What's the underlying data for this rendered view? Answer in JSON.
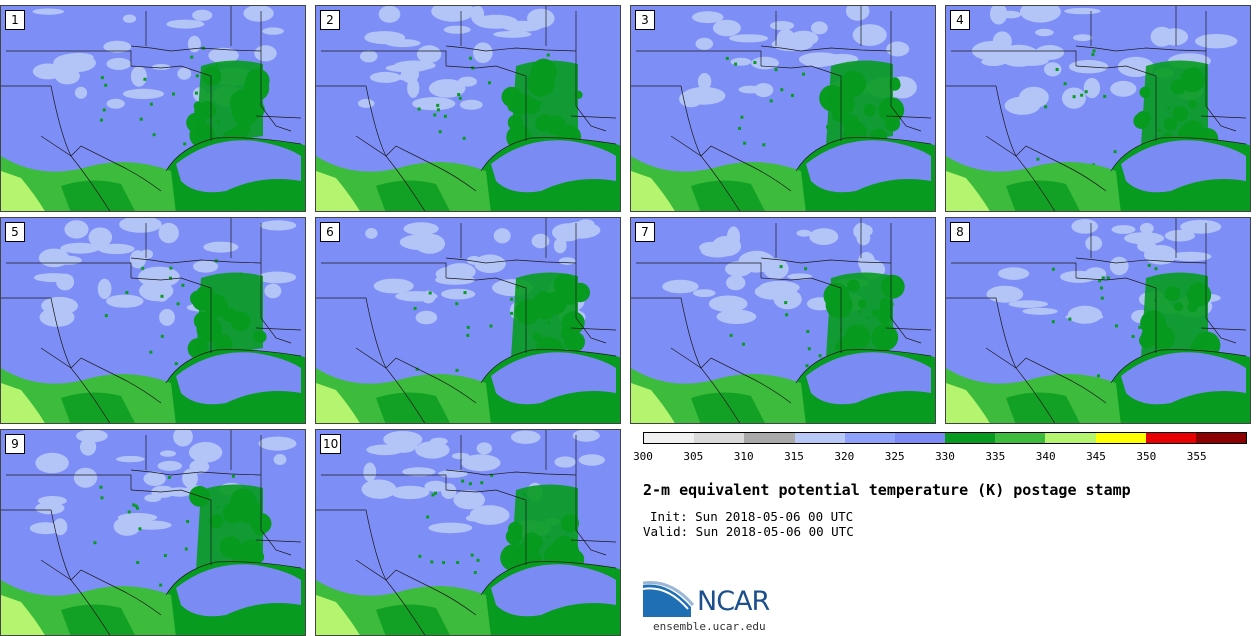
{
  "stamps": [
    {
      "label": "1"
    },
    {
      "label": "2"
    },
    {
      "label": "3"
    },
    {
      "label": "4"
    },
    {
      "label": "5"
    },
    {
      "label": "6"
    },
    {
      "label": "7"
    },
    {
      "label": "8"
    },
    {
      "label": "9"
    },
    {
      "label": "10"
    }
  ],
  "colorbar": {
    "colors": [
      "#f0f0f0",
      "#d9d9d9",
      "#a9a9a9",
      "#b8c9f7",
      "#8ea2fb",
      "#7b8af5",
      "#069b1f",
      "#3cbb3c",
      "#b4f46e",
      "#ffff00",
      "#e60000",
      "#8b0000"
    ],
    "tick_labels": [
      "300",
      "305",
      "310",
      "315",
      "320",
      "325",
      "330",
      "335",
      "340",
      "345",
      "350",
      "355"
    ]
  },
  "title": "2-m equivalent potential temperature (K) postage stamp",
  "init_text": "Init: Sun 2018-05-06 00 UTC",
  "valid_text": "Valid: Sun 2018-05-06 00 UTC",
  "logo_text": "NCAR",
  "site": "ensemble.ucar.edu",
  "map_colors": {
    "base": "#7e8ef7",
    "light": "#b3c5f7",
    "gulf": "#7b8bf4",
    "green": "#079b1f",
    "midgreen": "#3cbb3c",
    "lightgreen": "#b4f46e",
    "border": "#1a1a1a"
  }
}
